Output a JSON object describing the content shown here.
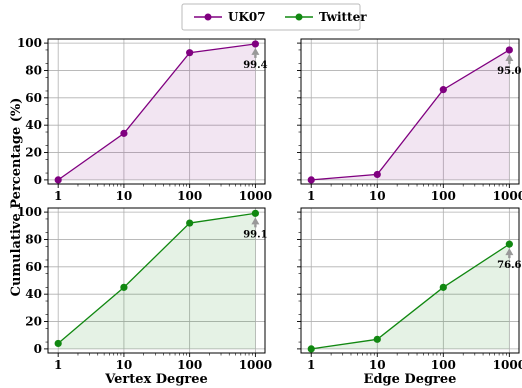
{
  "chart_data": {
    "type": "line",
    "ylabel": "Cumulative Percentage (%)",
    "x_ticks": [
      "1",
      "10",
      "100",
      "1000"
    ],
    "x": [
      1,
      10,
      100,
      1000
    ],
    "x_scale": "log",
    "ylim": [
      -3,
      103
    ],
    "y_ticks": [
      "0",
      "20",
      "40",
      "60",
      "80",
      "100"
    ],
    "grid": true,
    "legend": {
      "placement": "top-center",
      "entries": [
        {
          "name": "UK07",
          "color": "#800080"
        },
        {
          "name": "Twitter",
          "color": "#118811"
        }
      ]
    },
    "panels": [
      {
        "row": 0,
        "col": 0,
        "series": "UK07",
        "xlabel": "",
        "values": [
          0,
          34,
          93,
          99.4
        ],
        "annotation": "99.4"
      },
      {
        "row": 0,
        "col": 1,
        "series": "UK07",
        "xlabel": "",
        "values": [
          0,
          4,
          66,
          95.0
        ],
        "annotation": "95.0"
      },
      {
        "row": 1,
        "col": 0,
        "series": "Twitter",
        "xlabel": "Vertex Degree",
        "values": [
          4,
          45,
          92,
          99.1
        ],
        "annotation": "99.1"
      },
      {
        "row": 1,
        "col": 1,
        "series": "Twitter",
        "xlabel": "Edge Degree",
        "values": [
          0,
          7,
          45,
          76.6
        ],
        "annotation": "76.6"
      }
    ]
  }
}
